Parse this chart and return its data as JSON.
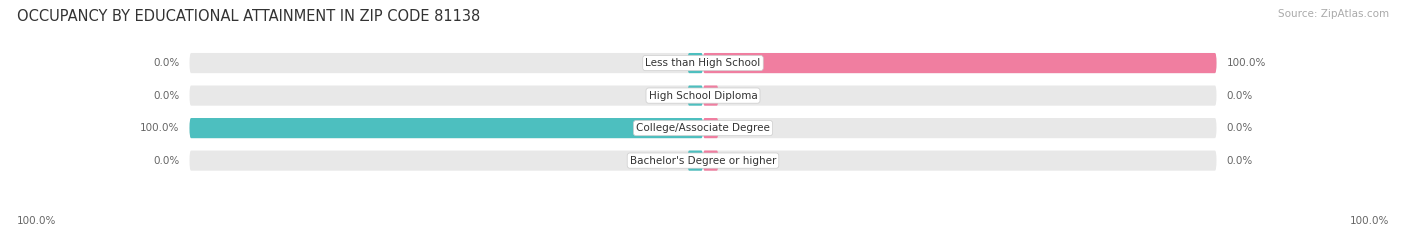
{
  "title": "OCCUPANCY BY EDUCATIONAL ATTAINMENT IN ZIP CODE 81138",
  "source": "Source: ZipAtlas.com",
  "categories": [
    "Less than High School",
    "High School Diploma",
    "College/Associate Degree",
    "Bachelor's Degree or higher"
  ],
  "owner_values": [
    0.0,
    0.0,
    100.0,
    0.0
  ],
  "renter_values": [
    100.0,
    0.0,
    0.0,
    0.0
  ],
  "owner_color": "#4DBFBF",
  "renter_color": "#F07EA0",
  "bar_bg_color": "#E8E8E8",
  "bg_color": "#FFFFFF",
  "title_fontsize": 10.5,
  "source_fontsize": 7.5,
  "label_fontsize": 7.5,
  "cat_fontsize": 7.5,
  "legend_fontsize": 8,
  "bar_height": 0.62,
  "figsize": [
    14.06,
    2.33
  ],
  "dpi": 100
}
